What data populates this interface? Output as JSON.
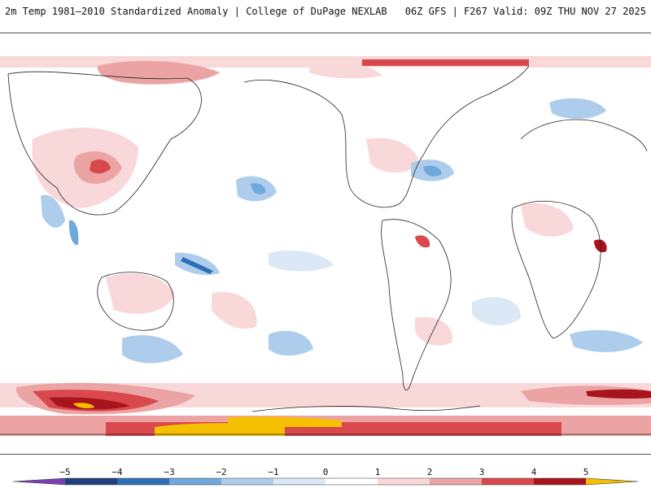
{
  "header": {
    "title_left": "2m Temp 1981–2010 Standardized Anomaly | College of DuPage NEXLAB",
    "title_right": "06Z GFS | F267 Valid: 09Z THU NOV 27 2025"
  },
  "map": {
    "projection": "global equirectangular, Pacific-centered",
    "variable": "2m temperature standardized anomaly"
  },
  "colorbar": {
    "ticks": [
      "−5",
      "−4",
      "−3",
      "−2",
      "−1",
      "0",
      "1",
      "2",
      "3",
      "4",
      "5"
    ],
    "colors": {
      "lt_-5": "#7a3fb5",
      "-5_-4": "#1f3f7a",
      "-4_-3": "#2f6fb5",
      "-3_-2": "#6fa8dc",
      "-2_-1": "#aecdec",
      "-1_0": "#dbe8f5",
      "0_1": "#ffffff",
      "1_2": "#f8d8d8",
      "2_3": "#eca3a3",
      "3_4": "#d9484d",
      "4_5": "#a8141c",
      "gt_5": "#6e0008",
      "extreme": "#f5c000"
    }
  }
}
